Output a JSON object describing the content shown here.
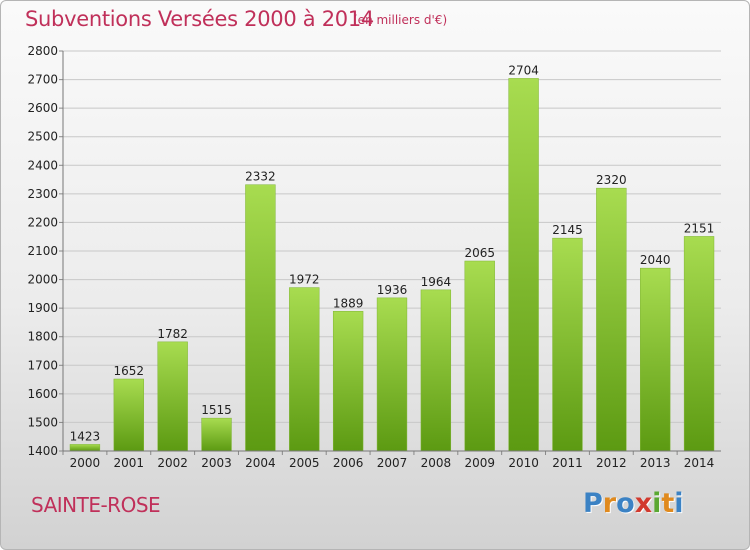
{
  "header": {
    "title": "Subventions Versées 2000 à 2014",
    "unit": "(en milliers d'€)"
  },
  "footer": {
    "place": "SAINTE-ROSE",
    "logo_text": "Proxiti",
    "logo_letters": [
      {
        "ch": "P",
        "color": "#3b82c4"
      },
      {
        "ch": "r",
        "color": "#e08a1e"
      },
      {
        "ch": "o",
        "color": "#3b82c4"
      },
      {
        "ch": "x",
        "color": "#d23a2e"
      },
      {
        "ch": "i",
        "color": "#5aa832"
      },
      {
        "ch": "t",
        "color": "#e08a1e"
      },
      {
        "ch": "i",
        "color": "#3b82c4"
      }
    ]
  },
  "colors": {
    "accent": "#c0305a",
    "bar_top": "#a8dc50",
    "bar_bottom": "#5c9a12",
    "grid": "#c8c8c8",
    "axis_text": "#222222"
  },
  "chart_data": {
    "type": "bar",
    "categories": [
      "2000",
      "2001",
      "2002",
      "2003",
      "2004",
      "2005",
      "2006",
      "2007",
      "2008",
      "2009",
      "2010",
      "2011",
      "2012",
      "2013",
      "2014"
    ],
    "values": [
      1423,
      1652,
      1782,
      1515,
      2332,
      1972,
      1889,
      1936,
      1964,
      2065,
      2704,
      2145,
      2320,
      2040,
      2151
    ],
    "title": "Subventions Versées 2000 à 2014",
    "subtitle": "(en milliers d'€)",
    "ylim": [
      1400,
      2800
    ],
    "yticks": [
      1400,
      1500,
      1600,
      1700,
      1800,
      1900,
      2000,
      2100,
      2200,
      2300,
      2400,
      2500,
      2600,
      2700,
      2800
    ],
    "grid": true,
    "legend": "none"
  }
}
